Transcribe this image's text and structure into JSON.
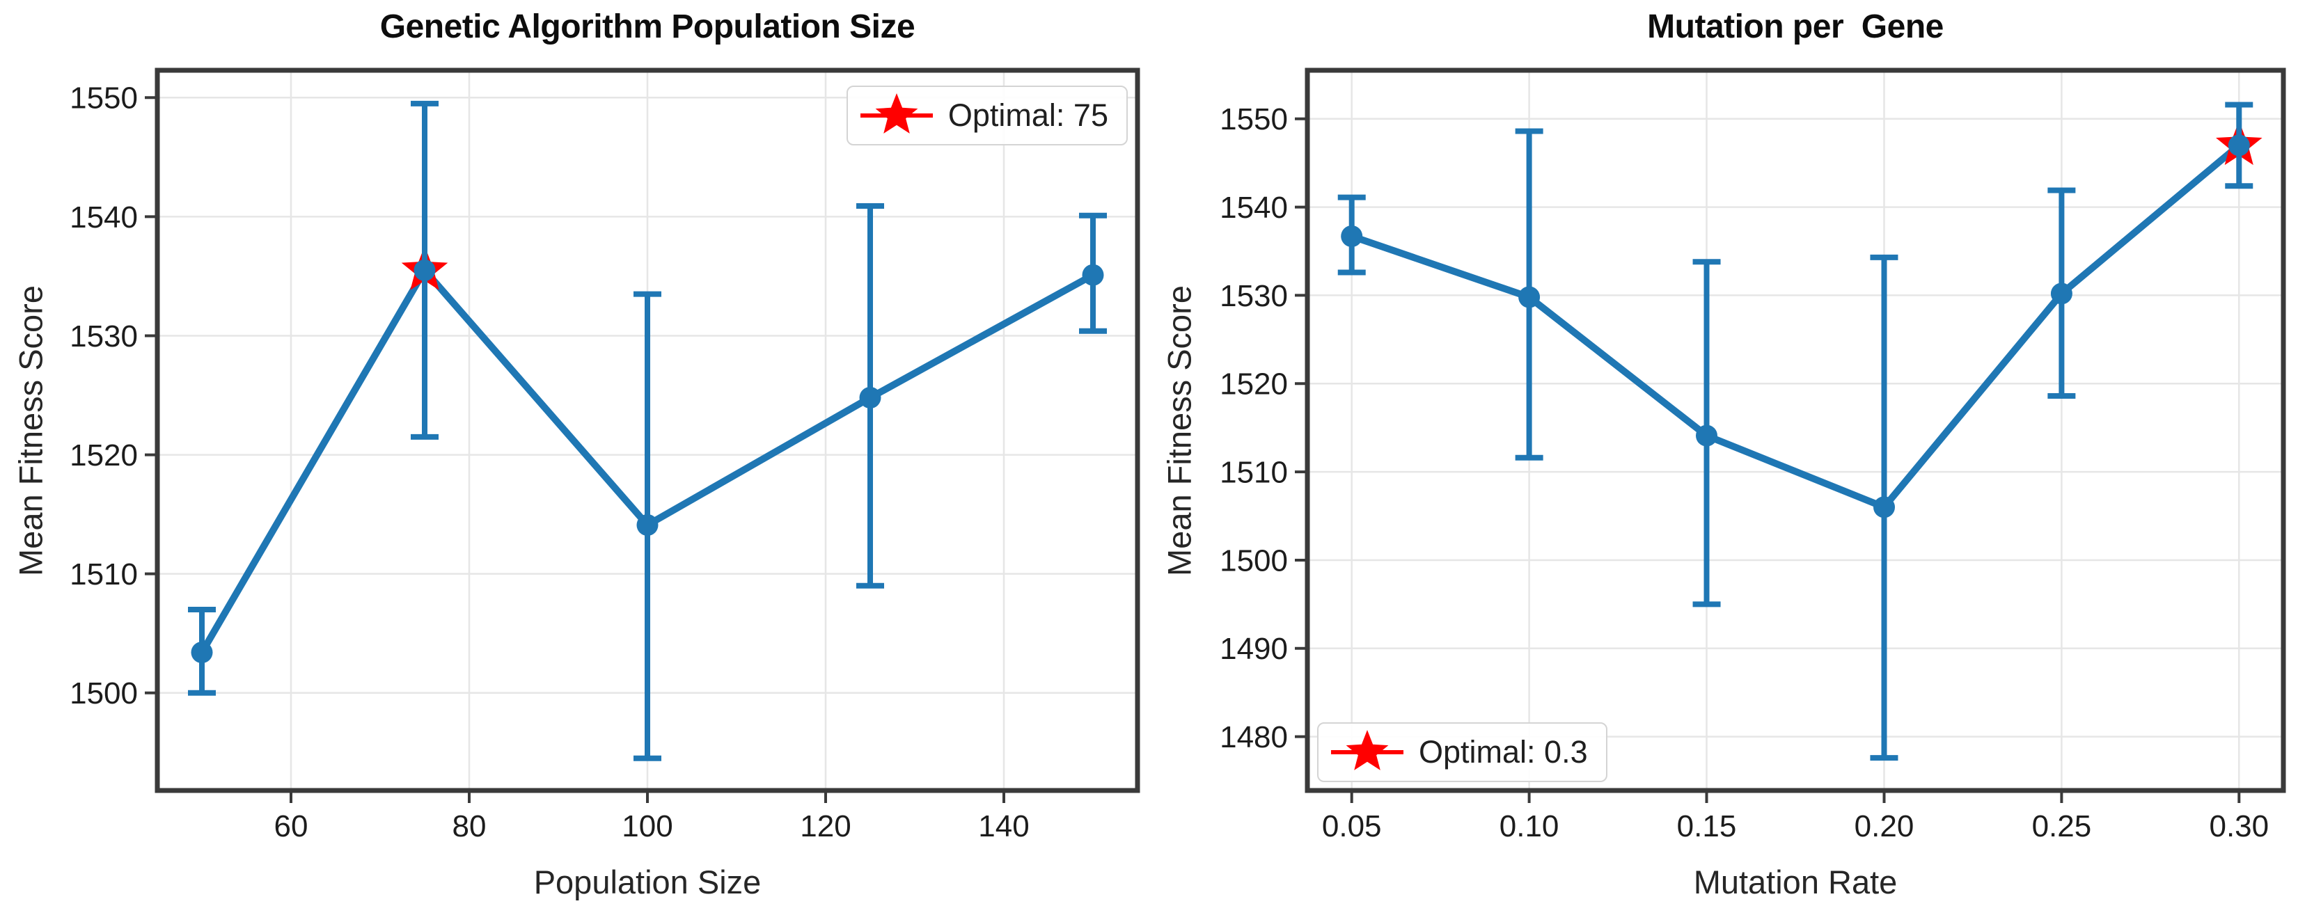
{
  "figure": {
    "background": "#ffffff"
  },
  "colors": {
    "line": "#1f77b4",
    "marker": "#1f77b4",
    "error": "#1f77b4",
    "optimal": "#ff0000",
    "grid": "#e6e6e6",
    "spine": "#3a3a3a",
    "tick": "#3a3a3a",
    "tick_label": "#1c1c1c",
    "legend_border": "#d4d4d4"
  },
  "chart_data": [
    {
      "type": "line",
      "title": "Genetic Algorithm Population Size",
      "xlabel": "Population Size",
      "ylabel": "Mean Fitness Score",
      "x": [
        50,
        75,
        100,
        125,
        150
      ],
      "y": [
        1503.4,
        1535.5,
        1514.1,
        1524.8,
        1535.1
      ],
      "yerr_low": [
        1500.0,
        1521.5,
        1494.5,
        1509.0,
        1530.4
      ],
      "yerr_high": [
        1507.0,
        1549.5,
        1533.5,
        1540.9,
        1540.1
      ],
      "xticks": [
        60,
        80,
        100,
        120,
        140
      ],
      "xtick_labels": [
        "60",
        "80",
        "100",
        "120",
        "140"
      ],
      "yticks": [
        1500,
        1510,
        1520,
        1530,
        1540,
        1550
      ],
      "ytick_labels": [
        "1500",
        "1510",
        "1520",
        "1530",
        "1540",
        "1550"
      ],
      "xlim": [
        45,
        155
      ],
      "ylim": [
        1491.8,
        1552.3
      ],
      "grid": true,
      "legend_label": "Optimal: 75",
      "legend_position": "upper right",
      "optimal": {
        "x": 75,
        "y": 1535.5
      }
    },
    {
      "type": "line",
      "title": "Mutation per  Gene",
      "xlabel": "Mutation Rate",
      "ylabel": "Mean Fitness Score",
      "x": [
        0.05,
        0.1,
        0.15,
        0.2,
        0.25,
        0.3
      ],
      "y": [
        1536.7,
        1529.8,
        1514.1,
        1506.0,
        1530.2,
        1547.0
      ],
      "yerr_low": [
        1532.6,
        1511.6,
        1495.0,
        1477.6,
        1518.6,
        1542.4
      ],
      "yerr_high": [
        1541.1,
        1548.6,
        1533.8,
        1534.3,
        1541.9,
        1551.6
      ],
      "xticks": [
        0.05,
        0.1,
        0.15,
        0.2,
        0.25,
        0.3
      ],
      "xtick_labels": [
        "0.05",
        "0.10",
        "0.15",
        "0.20",
        "0.25",
        "0.30"
      ],
      "yticks": [
        1480,
        1490,
        1500,
        1510,
        1520,
        1530,
        1540,
        1550
      ],
      "ytick_labels": [
        "1480",
        "1490",
        "1500",
        "1510",
        "1520",
        "1530",
        "1540",
        "1550"
      ],
      "xlim": [
        0.0375,
        0.3125
      ],
      "ylim": [
        1473.9,
        1555.5
      ],
      "grid": true,
      "legend_label": "Optimal: 0.3",
      "legend_position": "lower left",
      "optimal": {
        "x": 0.3,
        "y": 1547.0
      }
    }
  ]
}
